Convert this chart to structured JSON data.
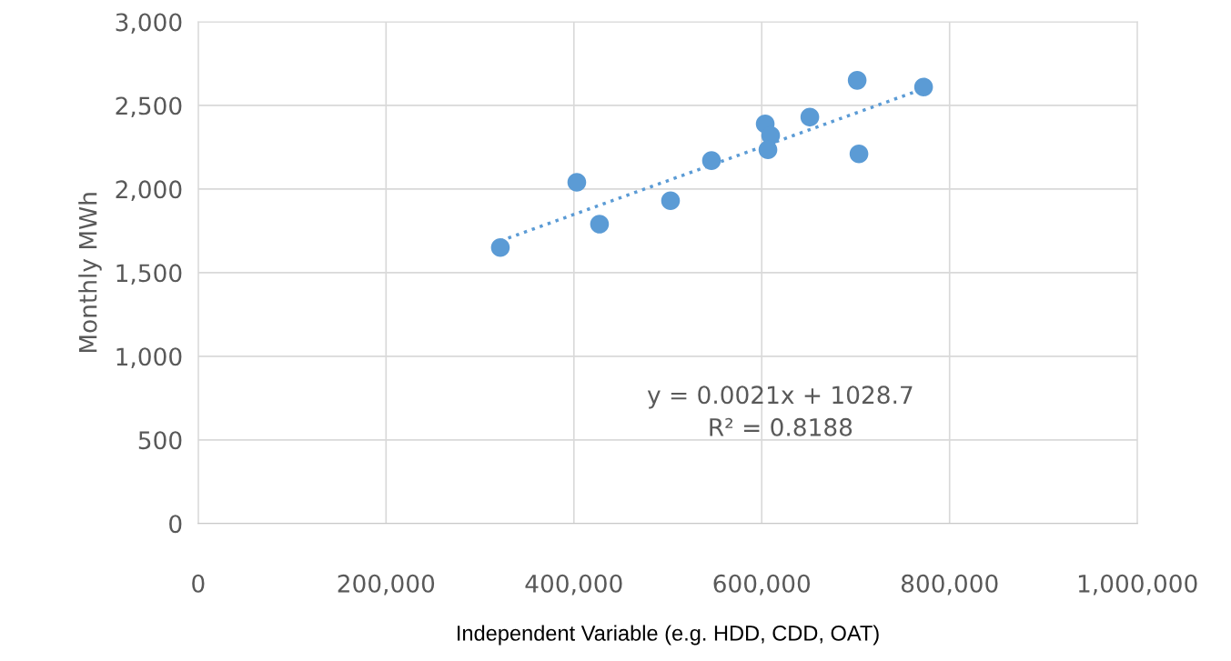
{
  "chart_data": {
    "type": "scatter",
    "xlabel": "Independent Variable (e.g. HDD, CDD, OAT)",
    "ylabel": "Monthly MWh",
    "series": [
      {
        "color": "#5b9bd5",
        "marker": "circle",
        "x": [
          321700,
          403100,
          427300,
          502900,
          546500,
          603700,
          609500,
          606600,
          651200,
          701600,
          703500,
          772300
        ],
        "values": [
          1650,
          2040,
          1790,
          1930,
          2170,
          2390,
          2320,
          2235,
          2430,
          2650,
          2210,
          2610
        ]
      },
      {
        "type": "line",
        "color": "#5b9bd5",
        "line_style": "dotted",
        "marker": "none",
        "x": [
          321700,
          772300
        ],
        "values": [
          1690,
          2600
        ]
      }
    ],
    "xlim": [
      0,
      1000000
    ],
    "xticks": [
      0,
      {
        "value": 200000,
        "label": "200,000"
      },
      {
        "value": 400000,
        "label": "400,000"
      },
      {
        "value": 600000,
        "label": "600,000"
      },
      {
        "value": 800000,
        "label": "800,000"
      },
      {
        "value": 1000000,
        "label": "1,000,000"
      }
    ],
    "ylim": [
      0,
      3000
    ],
    "yticks": [
      0,
      500,
      {
        "value": 1000,
        "label": "1,000"
      },
      {
        "value": 1500,
        "label": "1,500"
      },
      {
        "value": 2000,
        "label": "2,000"
      },
      {
        "value": 2500,
        "label": "2,500"
      },
      {
        "value": 3000,
        "label": "3,000"
      }
    ],
    "grid": true,
    "annotations": [
      "y = 0.0021x + 1028.7\nR² = 0.8188"
    ]
  }
}
